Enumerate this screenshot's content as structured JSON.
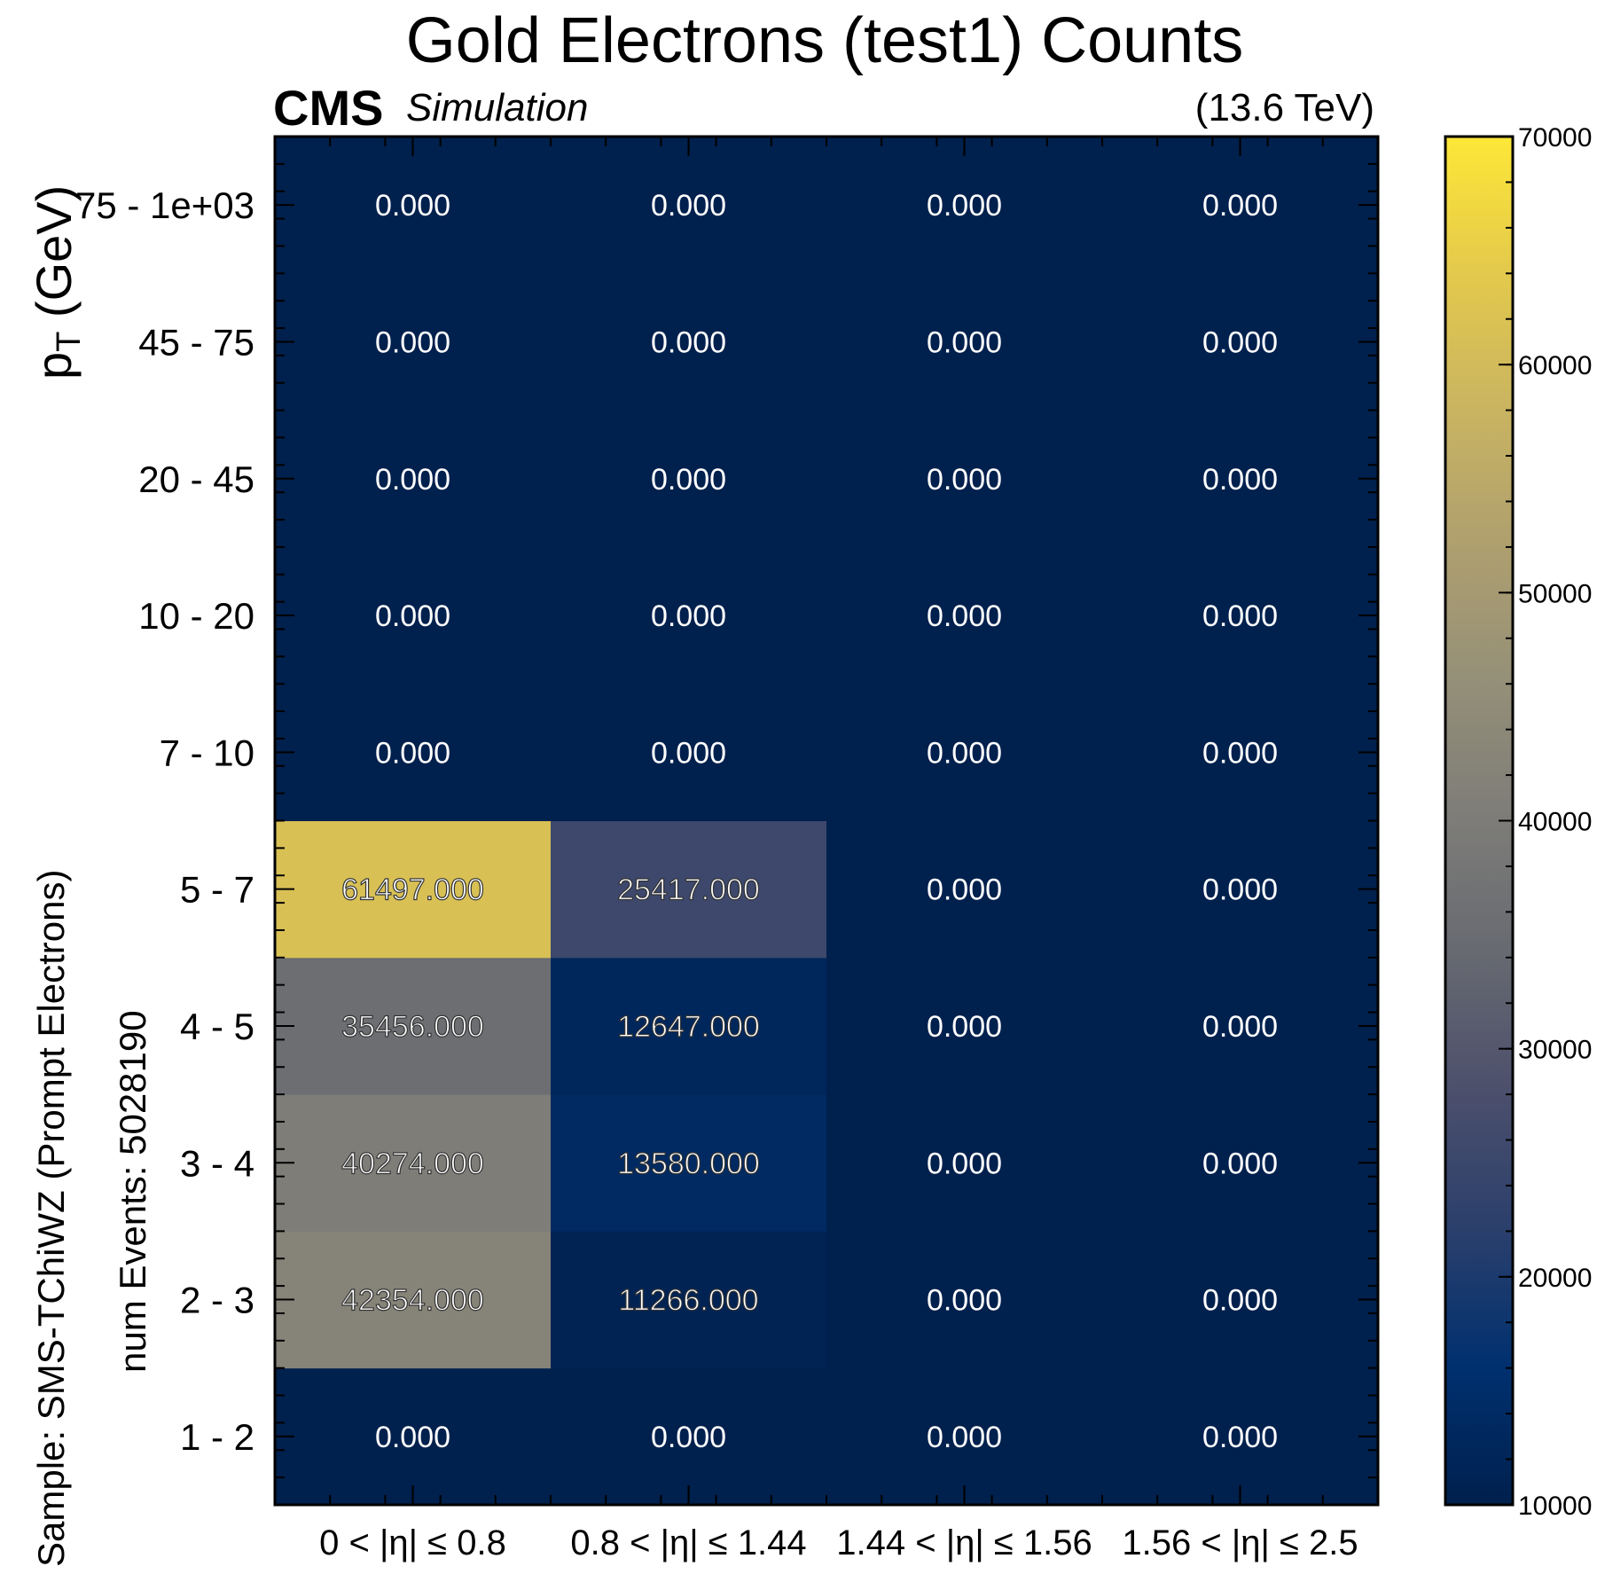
{
  "chart_data": {
    "type": "heatmap",
    "title": "Gold Electrons (test1) Counts",
    "experiment": "CMS",
    "experiment_tag": "Simulation",
    "energy": "(13.6 TeV)",
    "ylabel": "p",
    "ylabel_sub": "T",
    "ylabel_unit": " (GeV)",
    "side_text_1": "Sample: SMS-TChiWZ (Prompt Electrons)",
    "side_text_2": "num Events: 5028190",
    "x_categories": [
      [
        "0",
        "< |η| ≤",
        "0.8"
      ],
      [
        "0.8",
        "< |η| ≤",
        "1.44"
      ],
      [
        "1.44",
        "< |η| ≤",
        "1.56"
      ],
      [
        "1.56",
        "< |η| ≤",
        "2.5"
      ]
    ],
    "y_categories": [
      "1 - 2",
      "2 - 3",
      "3 - 4",
      "4 - 5",
      "5 - 7",
      "7 - 10",
      "10 - 20",
      "20 - 45",
      "45 - 75",
      "75 - 1e+03"
    ],
    "values": [
      [
        0,
        0,
        0,
        0
      ],
      [
        42354,
        11266,
        0,
        0
      ],
      [
        40274,
        13580,
        0,
        0
      ],
      [
        35456,
        12647,
        0,
        0
      ],
      [
        61497,
        25417,
        0,
        0
      ],
      [
        0,
        0,
        0,
        0
      ],
      [
        0,
        0,
        0,
        0
      ],
      [
        0,
        0,
        0,
        0
      ],
      [
        0,
        0,
        0,
        0
      ],
      [
        0,
        0,
        0,
        0
      ]
    ],
    "value_format_decimals": 3,
    "colorbar": {
      "range": [
        10000,
        70000
      ],
      "ticks": [
        10000,
        20000,
        30000,
        40000,
        50000,
        60000,
        70000
      ],
      "colormap": "cividis",
      "stops": [
        "#00204d",
        "#00306f",
        "#2a3f6c",
        "#4b4f6c",
        "#666970",
        "#7d7c78",
        "#948f78",
        "#ae9f6f",
        "#c9b461",
        "#e3c94c",
        "#fde737"
      ]
    },
    "below_range_color": "#00204d"
  }
}
